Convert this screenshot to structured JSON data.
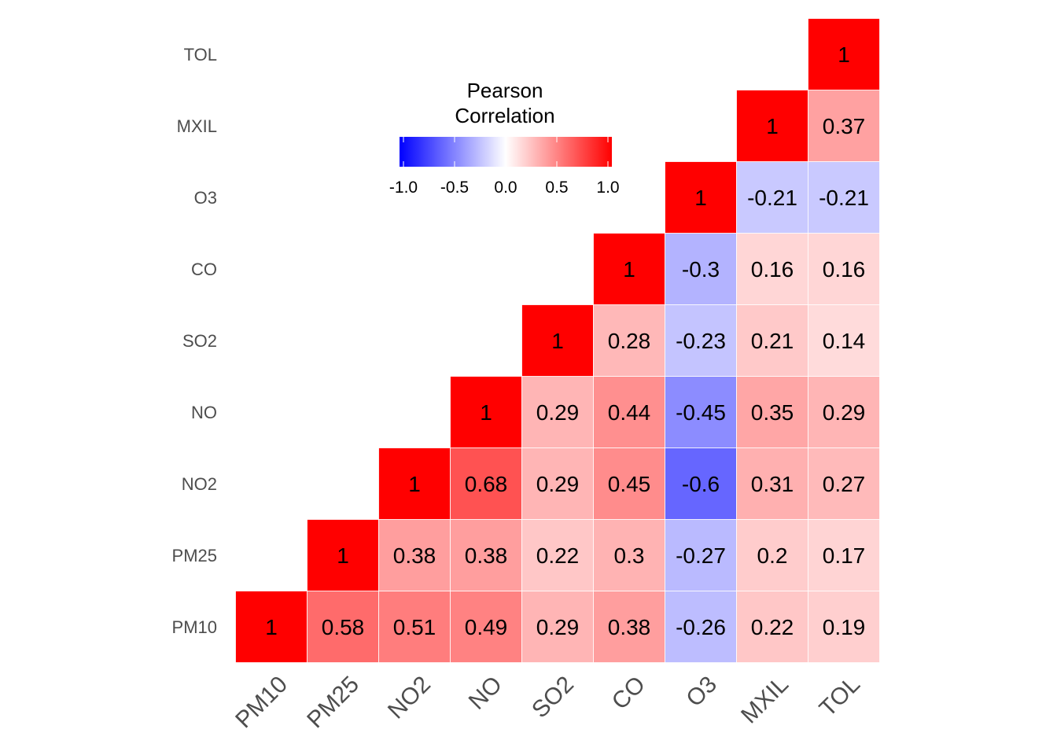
{
  "chart_data": {
    "type": "heatmap",
    "variables": [
      "PM10",
      "PM25",
      "NO2",
      "NO",
      "SO2",
      "CO",
      "O3",
      "MXIL",
      "TOL"
    ],
    "cells": [
      {
        "x": "PM10",
        "y": "PM10",
        "value": 1,
        "label": "1"
      },
      {
        "x": "PM25",
        "y": "PM10",
        "value": 0.58,
        "label": "0.58"
      },
      {
        "x": "NO2",
        "y": "PM10",
        "value": 0.51,
        "label": "0.51"
      },
      {
        "x": "NO",
        "y": "PM10",
        "value": 0.49,
        "label": "0.49"
      },
      {
        "x": "SO2",
        "y": "PM10",
        "value": 0.29,
        "label": "0.29"
      },
      {
        "x": "CO",
        "y": "PM10",
        "value": 0.38,
        "label": "0.38"
      },
      {
        "x": "O3",
        "y": "PM10",
        "value": -0.26,
        "label": "-0.26"
      },
      {
        "x": "MXIL",
        "y": "PM10",
        "value": 0.22,
        "label": "0.22"
      },
      {
        "x": "TOL",
        "y": "PM10",
        "value": 0.19,
        "label": "0.19"
      },
      {
        "x": "PM25",
        "y": "PM25",
        "value": 1,
        "label": "1"
      },
      {
        "x": "NO2",
        "y": "PM25",
        "value": 0.38,
        "label": "0.38"
      },
      {
        "x": "NO",
        "y": "PM25",
        "value": 0.38,
        "label": "0.38"
      },
      {
        "x": "SO2",
        "y": "PM25",
        "value": 0.22,
        "label": "0.22"
      },
      {
        "x": "CO",
        "y": "PM25",
        "value": 0.3,
        "label": "0.3"
      },
      {
        "x": "O3",
        "y": "PM25",
        "value": -0.27,
        "label": "-0.27"
      },
      {
        "x": "MXIL",
        "y": "PM25",
        "value": 0.2,
        "label": "0.2"
      },
      {
        "x": "TOL",
        "y": "PM25",
        "value": 0.17,
        "label": "0.17"
      },
      {
        "x": "NO2",
        "y": "NO2",
        "value": 1,
        "label": "1"
      },
      {
        "x": "NO",
        "y": "NO2",
        "value": 0.68,
        "label": "0.68"
      },
      {
        "x": "SO2",
        "y": "NO2",
        "value": 0.29,
        "label": "0.29"
      },
      {
        "x": "CO",
        "y": "NO2",
        "value": 0.45,
        "label": "0.45"
      },
      {
        "x": "O3",
        "y": "NO2",
        "value": -0.6,
        "label": "-0.6"
      },
      {
        "x": "MXIL",
        "y": "NO2",
        "value": 0.31,
        "label": "0.31"
      },
      {
        "x": "TOL",
        "y": "NO2",
        "value": 0.27,
        "label": "0.27"
      },
      {
        "x": "NO",
        "y": "NO",
        "value": 1,
        "label": "1"
      },
      {
        "x": "SO2",
        "y": "NO",
        "value": 0.29,
        "label": "0.29"
      },
      {
        "x": "CO",
        "y": "NO",
        "value": 0.44,
        "label": "0.44"
      },
      {
        "x": "O3",
        "y": "NO",
        "value": -0.45,
        "label": "-0.45"
      },
      {
        "x": "MXIL",
        "y": "NO",
        "value": 0.35,
        "label": "0.35"
      },
      {
        "x": "TOL",
        "y": "NO",
        "value": 0.29,
        "label": "0.29"
      },
      {
        "x": "SO2",
        "y": "SO2",
        "value": 1,
        "label": "1"
      },
      {
        "x": "CO",
        "y": "SO2",
        "value": 0.28,
        "label": "0.28"
      },
      {
        "x": "O3",
        "y": "SO2",
        "value": -0.23,
        "label": "-0.23"
      },
      {
        "x": "MXIL",
        "y": "SO2",
        "value": 0.21,
        "label": "0.21"
      },
      {
        "x": "TOL",
        "y": "SO2",
        "value": 0.14,
        "label": "0.14"
      },
      {
        "x": "CO",
        "y": "CO",
        "value": 1,
        "label": "1"
      },
      {
        "x": "O3",
        "y": "CO",
        "value": -0.3,
        "label": "-0.3"
      },
      {
        "x": "MXIL",
        "y": "CO",
        "value": 0.16,
        "label": "0.16"
      },
      {
        "x": "TOL",
        "y": "CO",
        "value": 0.16,
        "label": "0.16"
      },
      {
        "x": "O3",
        "y": "O3",
        "value": 1,
        "label": "1"
      },
      {
        "x": "MXIL",
        "y": "O3",
        "value": -0.21,
        "label": "-0.21"
      },
      {
        "x": "TOL",
        "y": "O3",
        "value": -0.21,
        "label": "-0.21"
      },
      {
        "x": "MXIL",
        "y": "MXIL",
        "value": 1,
        "label": "1"
      },
      {
        "x": "TOL",
        "y": "MXIL",
        "value": 0.37,
        "label": "0.37"
      },
      {
        "x": "TOL",
        "y": "TOL",
        "value": 1,
        "label": "1"
      }
    ],
    "legend": {
      "title_line1": "Pearson",
      "title_line2": "Correlation",
      "ticks": [
        {
          "value": -1.0,
          "label": "-1.0"
        },
        {
          "value": -0.5,
          "label": "-0.5"
        },
        {
          "value": 0.0,
          "label": "0.0"
        },
        {
          "value": 0.5,
          "label": "0.5"
        },
        {
          "value": 1.0,
          "label": "1.0"
        }
      ],
      "limits": [
        -1,
        1
      ],
      "placement": "top-center"
    },
    "colors": {
      "low": "#0000ff",
      "mid": "#ffffff",
      "high": "#ff0000"
    }
  }
}
